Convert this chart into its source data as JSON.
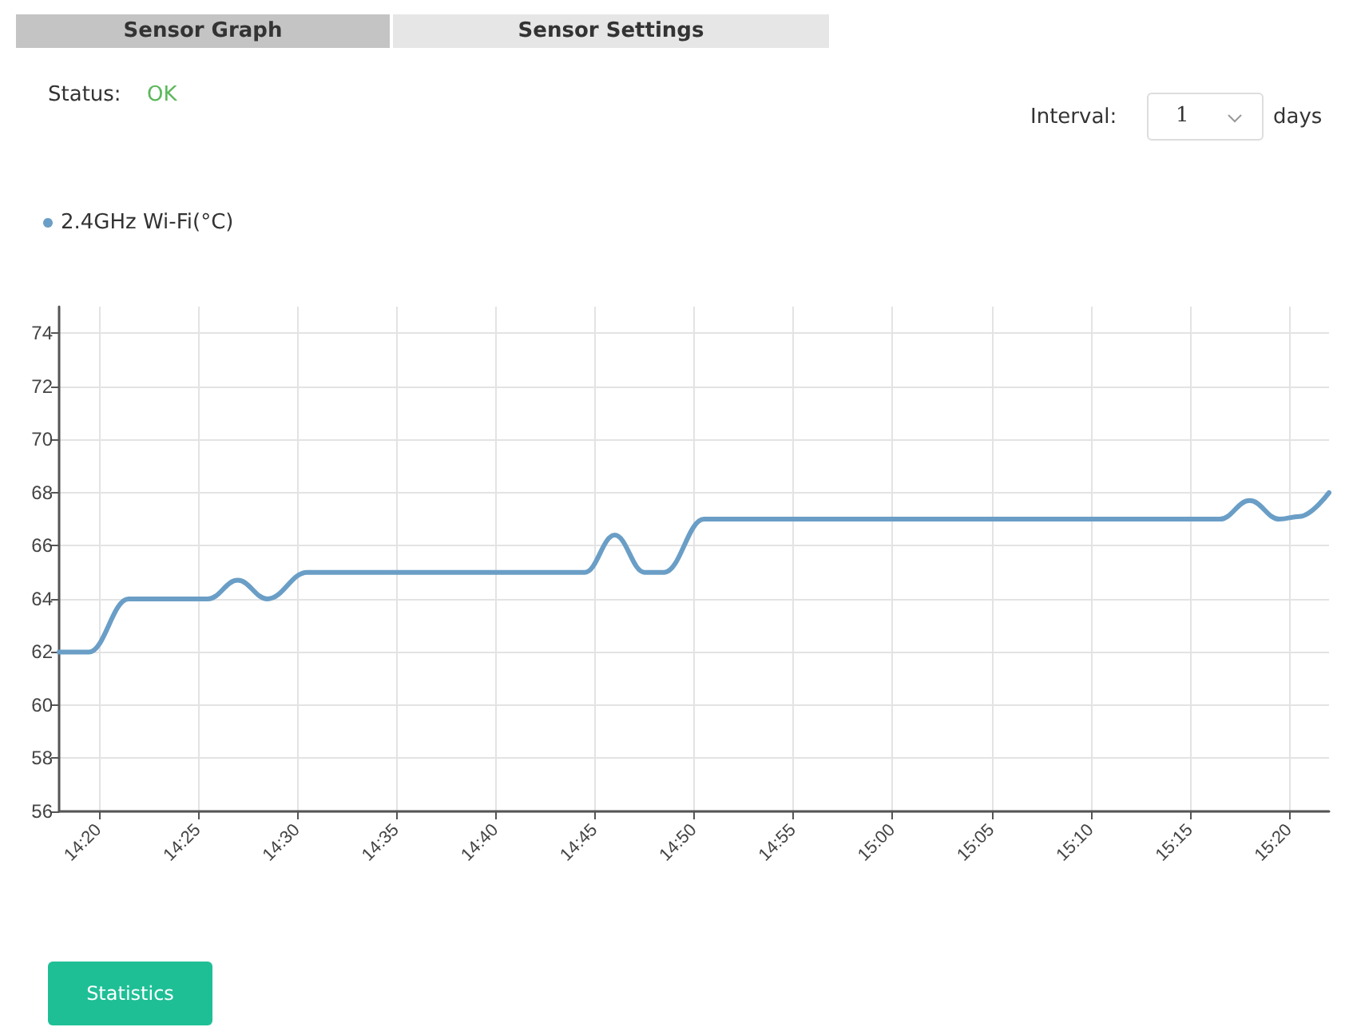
{
  "chart_data": {
    "type": "line",
    "legend": "top left",
    "grid": true,
    "marker": "none",
    "line_style": "solid",
    "annotations": [
      "Sensor Graph",
      "Sensor Settings",
      "Status:",
      "OK",
      "Interval:",
      "1",
      "days",
      "Statistics"
    ],
    "xlim": [
      14.3,
      15.3667
    ],
    "xticks": [
      {
        "value": 14.3333,
        "label": "14:20"
      },
      {
        "value": 14.4167,
        "label": "14:25"
      },
      {
        "value": 14.5,
        "label": "14:30"
      },
      {
        "value": 14.5833,
        "label": "14:35"
      },
      {
        "value": 14.6667,
        "label": "14:40"
      },
      {
        "value": 14.75,
        "label": "14:45"
      },
      {
        "value": 14.8333,
        "label": "14:50"
      },
      {
        "value": 14.9167,
        "label": "14:55"
      },
      {
        "value": 15,
        "label": "15:00"
      },
      {
        "value": 15.0833,
        "label": "15:05"
      },
      {
        "value": 15.1667,
        "label": "15:10"
      },
      {
        "value": 15.25,
        "label": "15:15"
      },
      {
        "value": 15.3333,
        "label": "15:20"
      }
    ],
    "ylim": [
      56,
      75
    ],
    "yticks": [
      56,
      58,
      60,
      62,
      64,
      66,
      68,
      70,
      72,
      74
    ],
    "series": [
      {
        "name": "2.4GHz Wi-Fi(°C)",
        "color": "#6a9ec6",
        "x": [
          14.3,
          14.325,
          14.3583,
          14.425,
          14.45,
          14.475,
          14.5083,
          14.7417,
          14.7667,
          14.7917,
          14.8083,
          14.8417,
          15.275,
          15.3,
          15.325,
          15.3417,
          15.3667
        ],
        "values": [
          62,
          62,
          64,
          64,
          64.7,
          64,
          65,
          65,
          66.4,
          65,
          65,
          67,
          67,
          67.7,
          67,
          67.1,
          68
        ]
      }
    ]
  }
}
